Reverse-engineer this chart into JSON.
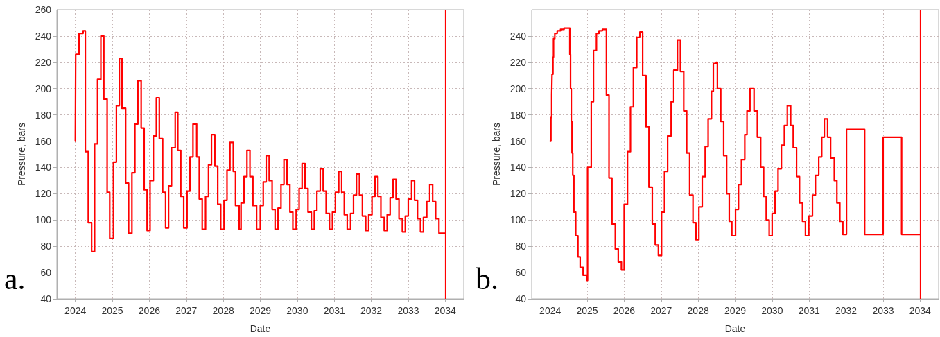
{
  "chart_data": [
    {
      "type": "step",
      "xlabel": "Date",
      "ylabel": "Pressure, bars",
      "color": "#ff0000",
      "marker": "none",
      "line_style": "solid",
      "grid": true,
      "xlim": [
        2023.5,
        2034.5
      ],
      "xticks": [
        2024,
        2025,
        2026,
        2027,
        2028,
        2029,
        2030,
        2031,
        2032,
        2033,
        2034
      ],
      "ylim": [
        40,
        260
      ],
      "yticks": [
        40,
        60,
        80,
        100,
        120,
        140,
        160,
        180,
        200,
        220,
        240,
        260
      ],
      "ref_lines": [
        {
          "axis": "x",
          "value": 2034,
          "color": "#ff0000"
        }
      ],
      "annotations": [
        "a."
      ],
      "x": [
        2024.0,
        2024.01,
        2024.1,
        2024.21,
        2024.27,
        2024.35,
        2024.44,
        2024.52,
        2024.6,
        2024.69,
        2024.77,
        2024.86,
        2024.93,
        2025.03,
        2025.11,
        2025.19,
        2025.26,
        2025.36,
        2025.44,
        2025.53,
        2025.61,
        2025.69,
        2025.78,
        2025.86,
        2025.94,
        2026.02,
        2026.11,
        2026.19,
        2026.27,
        2026.36,
        2026.44,
        2026.52,
        2026.6,
        2026.7,
        2026.77,
        2026.85,
        2026.93,
        2027.02,
        2027.1,
        2027.18,
        2027.28,
        2027.35,
        2027.43,
        2027.52,
        2027.6,
        2027.68,
        2027.77,
        2027.85,
        2027.93,
        2028.02,
        2028.1,
        2028.18,
        2028.27,
        2028.33,
        2028.43,
        2028.48,
        2028.56,
        2028.64,
        2028.72,
        2028.8,
        2028.9,
        2029.0,
        2029.08,
        2029.16,
        2029.24,
        2029.32,
        2029.4,
        2029.48,
        2029.56,
        2029.64,
        2029.72,
        2029.8,
        2029.88,
        2029.97,
        2030.05,
        2030.13,
        2030.21,
        2030.29,
        2030.38,
        2030.46,
        2030.53,
        2030.62,
        2030.7,
        2030.78,
        2030.87,
        2030.95,
        2031.03,
        2031.12,
        2031.2,
        2031.27,
        2031.35,
        2031.44,
        2031.52,
        2031.6,
        2031.68,
        2031.76,
        2031.85,
        2031.93,
        2032.02,
        2032.1,
        2032.18,
        2032.26,
        2032.35,
        2032.43,
        2032.51,
        2032.59,
        2032.67,
        2032.75,
        2032.84,
        2032.92,
        2033.0,
        2033.09,
        2033.17,
        2033.25,
        2033.33,
        2033.41,
        2033.5,
        2033.58,
        2033.66,
        2033.74,
        2033.83,
        2034.0
      ],
      "values": [
        160,
        226,
        242,
        244,
        152,
        98,
        76,
        158,
        207,
        240,
        192,
        121,
        86,
        144,
        187,
        223,
        185,
        128,
        90,
        136,
        173,
        206,
        170,
        123,
        92,
        130,
        164,
        193,
        162,
        121,
        94,
        126,
        155,
        182,
        153,
        118,
        94,
        122,
        148,
        173,
        148,
        116,
        93,
        118,
        142,
        165,
        141,
        112,
        93,
        115,
        138,
        159,
        137,
        111,
        93,
        113,
        133,
        153,
        133,
        111,
        93,
        111,
        129,
        149,
        130,
        108,
        93,
        109,
        127,
        146,
        127,
        106,
        93,
        108,
        124,
        143,
        124,
        106,
        93,
        107,
        122,
        139,
        122,
        105,
        93,
        106,
        121,
        137,
        121,
        104,
        93,
        105,
        119,
        135,
        119,
        103,
        92,
        104,
        118,
        133,
        118,
        102,
        92,
        104,
        117,
        131,
        116,
        101,
        91,
        103,
        116,
        130,
        115,
        101,
        91,
        102,
        114,
        127,
        114,
        101,
        90,
        90
      ]
    },
    {
      "type": "step",
      "xlabel": "Date",
      "ylabel": "Pressure, bars",
      "color": "#ff0000",
      "marker": "none",
      "line_style": "solid",
      "grid": true,
      "xlim": [
        2023.5,
        2034.5
      ],
      "xticks": [
        2024,
        2025,
        2026,
        2027,
        2028,
        2029,
        2030,
        2031,
        2032,
        2033,
        2034
      ],
      "ylim": [
        40,
        260
      ],
      "yticks": [
        40,
        60,
        80,
        100,
        120,
        140,
        160,
        180,
        200,
        220,
        240,
        {
          "value": 260,
          "label": null
        }
      ],
      "ref_lines": [
        {
          "axis": "x",
          "value": 2034,
          "color": "#ff0000"
        }
      ],
      "annotations": [
        "b."
      ],
      "x": [
        2024.0,
        2024.02,
        2024.04,
        2024.05,
        2024.075,
        2024.09,
        2024.125,
        2024.19,
        2024.28,
        2024.375,
        2024.51,
        2024.53,
        2024.55,
        2024.57,
        2024.59,
        2024.61,
        2024.64,
        2024.69,
        2024.75,
        2024.81,
        2024.89,
        2024.99,
        2025.01,
        2025.11,
        2025.17,
        2025.25,
        2025.32,
        2025.41,
        2025.52,
        2025.59,
        2025.67,
        2025.76,
        2025.84,
        2025.925,
        2026.0,
        2026.09,
        2026.17,
        2026.25,
        2026.34,
        2026.425,
        2026.5,
        2026.59,
        2026.67,
        2026.76,
        2026.84,
        2026.925,
        2027.01,
        2027.09,
        2027.175,
        2027.27,
        2027.34,
        2027.44,
        2027.52,
        2027.61,
        2027.69,
        2027.77,
        2027.86,
        2027.94,
        2028.02,
        2028.11,
        2028.19,
        2028.27,
        2028.36,
        2028.41,
        2028.49,
        2028.52,
        2028.61,
        2028.69,
        2028.77,
        2028.84,
        2028.91,
        2029.01,
        2029.09,
        2029.17,
        2029.26,
        2029.32,
        2029.4,
        2029.51,
        2029.6,
        2029.69,
        2029.77,
        2029.84,
        2029.92,
        2030.0,
        2030.08,
        2030.16,
        2030.25,
        2030.33,
        2030.41,
        2030.5,
        2030.57,
        2030.66,
        2030.74,
        2030.82,
        2030.9,
        2030.99,
        2031.09,
        2031.17,
        2031.26,
        2031.34,
        2031.41,
        2031.5,
        2031.58,
        2031.68,
        2031.75,
        2031.83,
        2031.91,
        2032.01,
        2032.5,
        2033.0,
        2033.5,
        2034.0
      ],
      "values": [
        160,
        178,
        195,
        211,
        224,
        238,
        242,
        244,
        245,
        246,
        246,
        226,
        200,
        175,
        151,
        134,
        106,
        88,
        72,
        64,
        58,
        54,
        140,
        190,
        229,
        242,
        244,
        245,
        195,
        132,
        97,
        78,
        68,
        62,
        112,
        152,
        186,
        216,
        239,
        243,
        210,
        171,
        125,
        97,
        81,
        73,
        106,
        137,
        164,
        190,
        214,
        237,
        213,
        183,
        151,
        119,
        98,
        85,
        110,
        133,
        156,
        177,
        198,
        219,
        220,
        200,
        175,
        149,
        120,
        99,
        88,
        108,
        127,
        146,
        165,
        183,
        200,
        183,
        163,
        140,
        118,
        100,
        88,
        105,
        122,
        139,
        157,
        172,
        187,
        172,
        155,
        133,
        113,
        99,
        88,
        103,
        119,
        134,
        148,
        163,
        177,
        163,
        147,
        130,
        113,
        99,
        89,
        169,
        89,
        163,
        89,
        89
      ]
    }
  ]
}
